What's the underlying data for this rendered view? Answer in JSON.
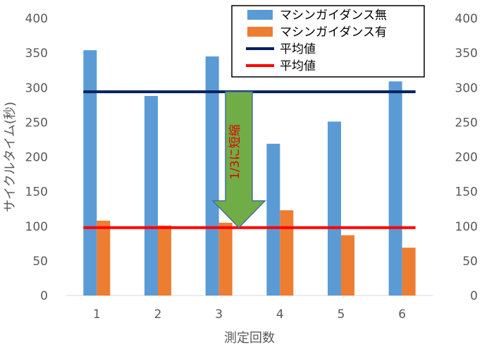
{
  "chart_data": {
    "type": "bar",
    "categories": [
      "1",
      "2",
      "3",
      "4",
      "5",
      "6"
    ],
    "series": [
      {
        "name": "マシンガイダンス無",
        "values": [
          354,
          288,
          345,
          219,
          251,
          309
        ],
        "color": "#5b9bd5"
      },
      {
        "name": "マシンガイダンス有",
        "values": [
          108,
          101,
          105,
          123,
          87,
          69
        ],
        "color": "#ed7d31"
      }
    ],
    "reference_lines": [
      {
        "name": "平均値",
        "value": 294,
        "color": "#002060"
      },
      {
        "name": "平均値",
        "value": 98,
        "color": "#ff0000"
      }
    ],
    "xlabel": "測定回数",
    "ylabel": "サイクルタイム(秒)",
    "ylim": [
      0,
      400
    ],
    "yticks": [
      "0",
      "50",
      "100",
      "150",
      "200",
      "250",
      "300",
      "350",
      "400"
    ],
    "secondary_yticks": [
      "0",
      "50",
      "100",
      "150",
      "200",
      "250",
      "300",
      "350",
      "400"
    ],
    "grid": false,
    "legend_position": "top-right",
    "annotation": {
      "text": "1/3に短縮",
      "arrow_from": 294,
      "arrow_to": 98,
      "arrow_color": "#70ad47",
      "text_color": "#e00000"
    }
  }
}
